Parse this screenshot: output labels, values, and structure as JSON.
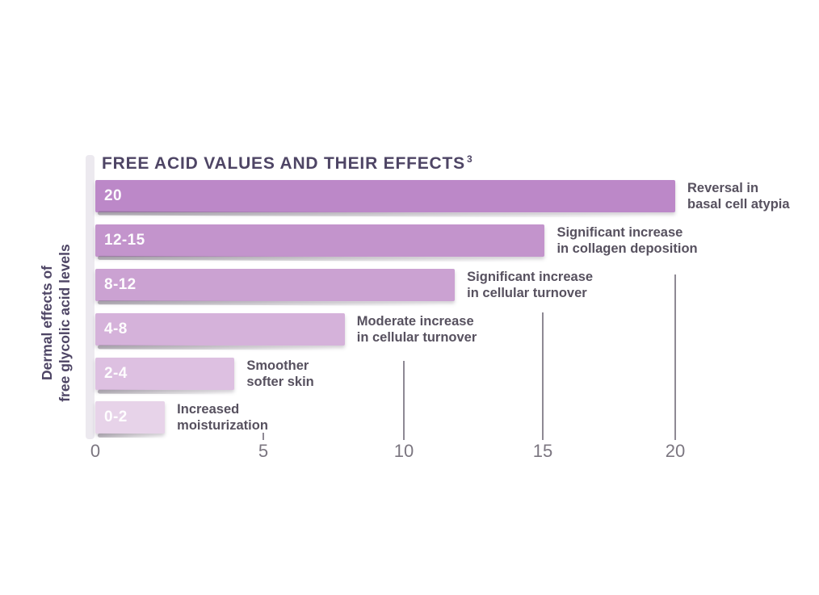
{
  "title": {
    "text": "FREE ACID VALUES AND THEIR EFFECTS",
    "superscript": "3"
  },
  "y_axis_label": {
    "line1": "Dermal effects of",
    "line2": "free glycolic acid levels"
  },
  "x_axis": {
    "ticks": [
      "0",
      "5",
      "10",
      "15",
      "20"
    ]
  },
  "chart_data": {
    "type": "bar",
    "orientation": "horizontal",
    "title": "FREE ACID VALUES AND THEIR EFFECTS",
    "footnote_marker": "3",
    "xlabel": "",
    "ylabel": "Dermal effects of free glycolic acid levels",
    "xlim": [
      0,
      20
    ],
    "x_ticks": [
      0,
      5,
      10,
      15,
      20
    ],
    "grid": "vertical tick lines at 5, 10, 15, 20 rising from axis",
    "legend_position": "none",
    "categories": [
      "20",
      "12-15",
      "8-12",
      "4-8",
      "2-4",
      "0-2"
    ],
    "values": [
      20,
      15.5,
      12.4,
      8.6,
      4.8,
      2.4
    ],
    "bars": [
      {
        "range": "20",
        "value": 20,
        "effect_line1": "Reversal in",
        "effect_line2": "basal cell atypia",
        "color": "#bc88c8"
      },
      {
        "range": "12-15",
        "value": 15.5,
        "effect_line1": "Significant increase",
        "effect_line2": "in collagen deposition",
        "color": "#c394cc"
      },
      {
        "range": "8-12",
        "value": 12.4,
        "effect_line1": "Significant increase",
        "effect_line2": "in cellular turnover",
        "color": "#cba2d2"
      },
      {
        "range": "4-8",
        "value": 8.6,
        "effect_line1": "Moderate increase",
        "effect_line2": "in cellular turnover",
        "color": "#d5b2da"
      },
      {
        "range": "2-4",
        "value": 4.8,
        "effect_line1": "Smoother",
        "effect_line2": "softer skin",
        "color": "#ddc0e1"
      },
      {
        "range": "0-2",
        "value": 2.4,
        "effect_line1": "Increased",
        "effect_line2": "moisturization",
        "color": "#e7d3e9"
      }
    ]
  },
  "colors": {
    "title_text": "#4e4565",
    "annotation_text": "#57515f",
    "axis_text": "#7b7680",
    "tick_line": "#8e8994",
    "left_strip": "#ece9ef",
    "background": "#ffffff"
  }
}
